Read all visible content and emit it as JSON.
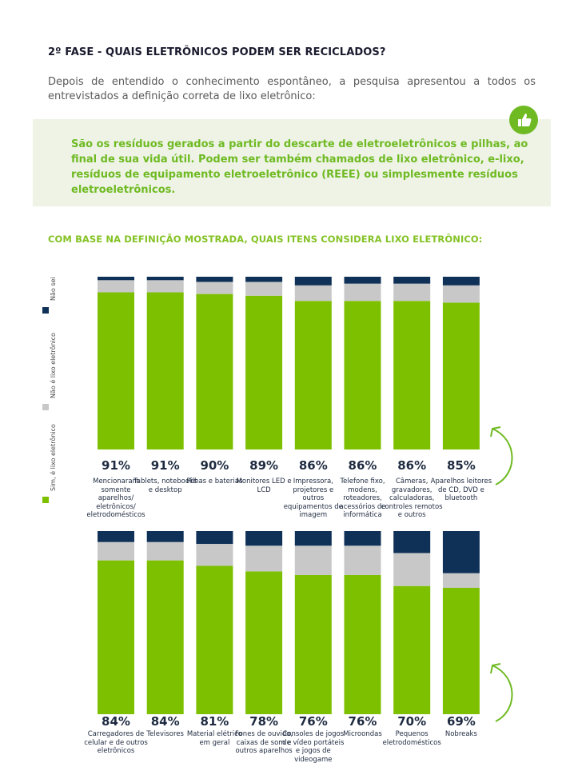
{
  "section_title": "2º FASE - QUAIS ELETRÔNICOS PODEM SER RECICLADOS?",
  "intro": "Depois de entendido o conhecimento espontâneo, a pesquisa apresentou a todos os entrevistados a definição correta de lixo eletrônico:",
  "definition": "São os resíduos gerados a partir do descarte de eletroeletrônicos e pilhas, ao final de sua vida útil. Podem ser também chamados de lixo eletrônico, e-lixo, resíduos de equipamento eletroeletrônico (REEE) ou simplesmente resíduos eletroeletrônicos.",
  "icons": {
    "badge": "thumbs-up-icon",
    "arrows": "curved-arrow-icon"
  },
  "colors": {
    "sim": "#7dc000",
    "nao": "#c8c8c8",
    "nao_sei": "#0f3057",
    "accent": "#6fba22"
  },
  "chart_data": [
    {
      "type": "bar",
      "stacked": true,
      "title": "COM BASE NA DEFINIÇÃO MOSTRADA, QUAIS ITENS CONSIDERA LIXO ELETRÔNICO:",
      "legend": [
        "Sim, é lixo eletrônico",
        "Não é lixo eletrônico",
        "Não sei"
      ],
      "legend_placement": "left, vertical",
      "ylim": [
        0,
        100
      ],
      "grid": false,
      "labels": [
        "91%",
        "91%",
        "90%",
        "89%",
        "86%",
        "86%",
        "86%",
        "85%"
      ],
      "categories": [
        "Mencionaram somente aparelhos/ eletrônicos/ eletrodomésticos",
        "Tablets, notebooks e desktop",
        "Pilhas e baterias",
        "Monitores LED e LCD",
        "Impressora, projetores e outros equipamentos de imagem",
        "Telefone fixo, modens, roteadores, acessórios de informática",
        "Câmeras, gravadores, calculadoras, controles remotos e outros",
        "Aparelhos leitores de CD, DVD e bluetooth"
      ],
      "series": [
        {
          "name": "Sim, é lixo eletrônico",
          "values": [
            91,
            91,
            90,
            89,
            86,
            86,
            86,
            85
          ]
        },
        {
          "name": "Não é lixo eletrônico",
          "values": [
            7,
            7,
            7,
            8,
            9,
            10,
            10,
            10
          ]
        },
        {
          "name": "Não sei",
          "values": [
            2,
            2,
            3,
            3,
            5,
            4,
            4,
            5
          ]
        }
      ]
    },
    {
      "type": "bar",
      "stacked": true,
      "ylim": [
        0,
        100
      ],
      "grid": false,
      "labels": [
        "84%",
        "84%",
        "81%",
        "78%",
        "76%",
        "76%",
        "70%",
        "69%"
      ],
      "categories": [
        "Carregadores de celular e de outros eletrônicos",
        "Televisores",
        "Material elétrico em geral",
        "Fones de ouvido, caixas de som e outros aparelhos",
        "Consoles de jogos de vídeo portáteis e jogos de videogame",
        "Microondas",
        "Pequenos eletrodomésticos",
        "Nobreaks"
      ],
      "series": [
        {
          "name": "Sim, é lixo eletrônico",
          "values": [
            84,
            84,
            81,
            78,
            76,
            76,
            70,
            69
          ]
        },
        {
          "name": "Não é lixo eletrônico",
          "values": [
            10,
            10,
            12,
            14,
            16,
            16,
            18,
            8
          ]
        },
        {
          "name": "Não sei",
          "values": [
            6,
            6,
            7,
            8,
            8,
            8,
            12,
            23
          ]
        }
      ]
    }
  ]
}
